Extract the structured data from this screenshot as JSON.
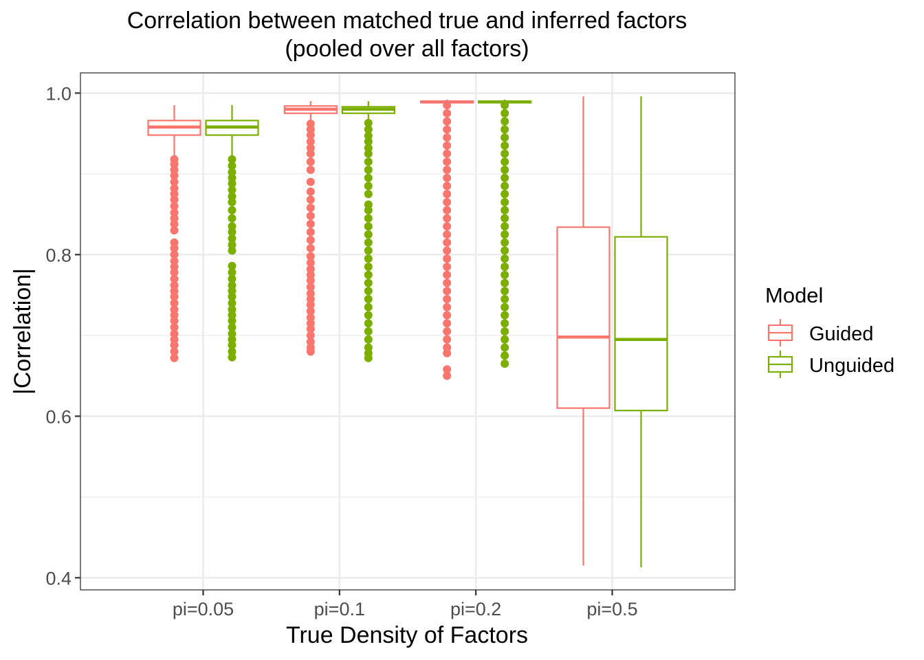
{
  "chart_data": {
    "type": "boxplot",
    "title": "Correlation between matched true and inferred factors",
    "subtitle": "(pooled over all factors)",
    "xlabel": "True Density of Factors",
    "ylabel": "|Correlation|",
    "categories": [
      "pi=0.05",
      "pi=0.1",
      "pi=0.2",
      "pi=0.5"
    ],
    "ylim": [
      0.385,
      1.025
    ],
    "yticks": [
      0.4,
      0.6,
      0.8,
      1.0
    ],
    "ytick_labels": [
      "0.4",
      "0.6",
      "0.8",
      "1.0"
    ],
    "grid": true,
    "legend": {
      "title": "Model",
      "position": "right"
    },
    "series": [
      {
        "name": "Guided",
        "color": "#F8766D",
        "boxes": [
          {
            "category": "pi=0.05",
            "whisker_low": 0.92,
            "q1": 0.948,
            "median": 0.958,
            "q3": 0.966,
            "whisker_high": 0.985,
            "outliers": [
              0.918,
              0.912,
              0.905,
              0.898,
              0.89,
              0.882,
              0.875,
              0.868,
              0.86,
              0.852,
              0.845,
              0.838,
              0.83,
              0.815,
              0.808,
              0.8,
              0.792,
              0.785,
              0.778,
              0.77,
              0.762,
              0.755,
              0.748,
              0.74,
              0.732,
              0.725,
              0.718,
              0.71,
              0.702,
              0.695,
              0.688,
              0.68,
              0.672
            ]
          },
          {
            "category": "pi=0.1",
            "whisker_low": 0.965,
            "q1": 0.975,
            "median": 0.98,
            "q3": 0.984,
            "whisker_high": 0.99,
            "outliers": [
              0.962,
              0.955,
              0.948,
              0.94,
              0.932,
              0.925,
              0.915,
              0.905,
              0.89,
              0.878,
              0.868,
              0.858,
              0.848,
              0.838,
              0.828,
              0.818,
              0.808,
              0.798,
              0.79,
              0.782,
              0.775,
              0.768,
              0.76,
              0.752,
              0.745,
              0.738,
              0.73,
              0.722,
              0.715,
              0.708,
              0.7,
              0.692,
              0.685,
              0.68
            ]
          },
          {
            "category": "pi=0.2",
            "whisker_low": 0.988,
            "q1": 0.988,
            "median": 0.989,
            "q3": 0.99,
            "whisker_high": 0.992,
            "outliers": [
              0.985,
              0.975,
              0.965,
              0.955,
              0.945,
              0.935,
              0.925,
              0.915,
              0.905,
              0.895,
              0.885,
              0.875,
              0.865,
              0.855,
              0.845,
              0.835,
              0.825,
              0.815,
              0.805,
              0.795,
              0.785,
              0.775,
              0.765,
              0.755,
              0.745,
              0.735,
              0.725,
              0.715,
              0.705,
              0.695,
              0.685,
              0.678,
              0.658,
              0.65
            ]
          },
          {
            "category": "pi=0.5",
            "whisker_low": 0.415,
            "q1": 0.61,
            "median": 0.698,
            "q3": 0.834,
            "whisker_high": 0.996,
            "outliers": []
          }
        ]
      },
      {
        "name": "Unguided",
        "color": "#7CAE00",
        "boxes": [
          {
            "category": "pi=0.05",
            "whisker_low": 0.92,
            "q1": 0.948,
            "median": 0.958,
            "q3": 0.966,
            "whisker_high": 0.985,
            "outliers": [
              0.918,
              0.91,
              0.902,
              0.895,
              0.888,
              0.88,
              0.872,
              0.865,
              0.855,
              0.845,
              0.835,
              0.828,
              0.82,
              0.812,
              0.805,
              0.786,
              0.778,
              0.77,
              0.762,
              0.755,
              0.748,
              0.74,
              0.732,
              0.725,
              0.718,
              0.71,
              0.702,
              0.695,
              0.688,
              0.68,
              0.673
            ]
          },
          {
            "category": "pi=0.1",
            "whisker_low": 0.965,
            "q1": 0.975,
            "median": 0.98,
            "q3": 0.983,
            "whisker_high": 0.99,
            "outliers": [
              0.963,
              0.955,
              0.947,
              0.94,
              0.932,
              0.925,
              0.915,
              0.905,
              0.895,
              0.885,
              0.875,
              0.862,
              0.855,
              0.845,
              0.835,
              0.825,
              0.815,
              0.805,
              0.795,
              0.785,
              0.775,
              0.765,
              0.755,
              0.745,
              0.735,
              0.725,
              0.715,
              0.705,
              0.695,
              0.685,
              0.678,
              0.672
            ]
          },
          {
            "category": "pi=0.2",
            "whisker_low": 0.988,
            "q1": 0.988,
            "median": 0.989,
            "q3": 0.99,
            "whisker_high": 0.992,
            "outliers": [
              0.985,
              0.975,
              0.965,
              0.955,
              0.945,
              0.935,
              0.925,
              0.915,
              0.905,
              0.895,
              0.885,
              0.875,
              0.865,
              0.855,
              0.845,
              0.835,
              0.825,
              0.815,
              0.805,
              0.795,
              0.785,
              0.775,
              0.765,
              0.755,
              0.745,
              0.735,
              0.725,
              0.715,
              0.705,
              0.695,
              0.685,
              0.675,
              0.665
            ]
          },
          {
            "category": "pi=0.5",
            "whisker_low": 0.413,
            "q1": 0.607,
            "median": 0.695,
            "q3": 0.822,
            "whisker_high": 0.996,
            "outliers": []
          }
        ]
      }
    ]
  }
}
